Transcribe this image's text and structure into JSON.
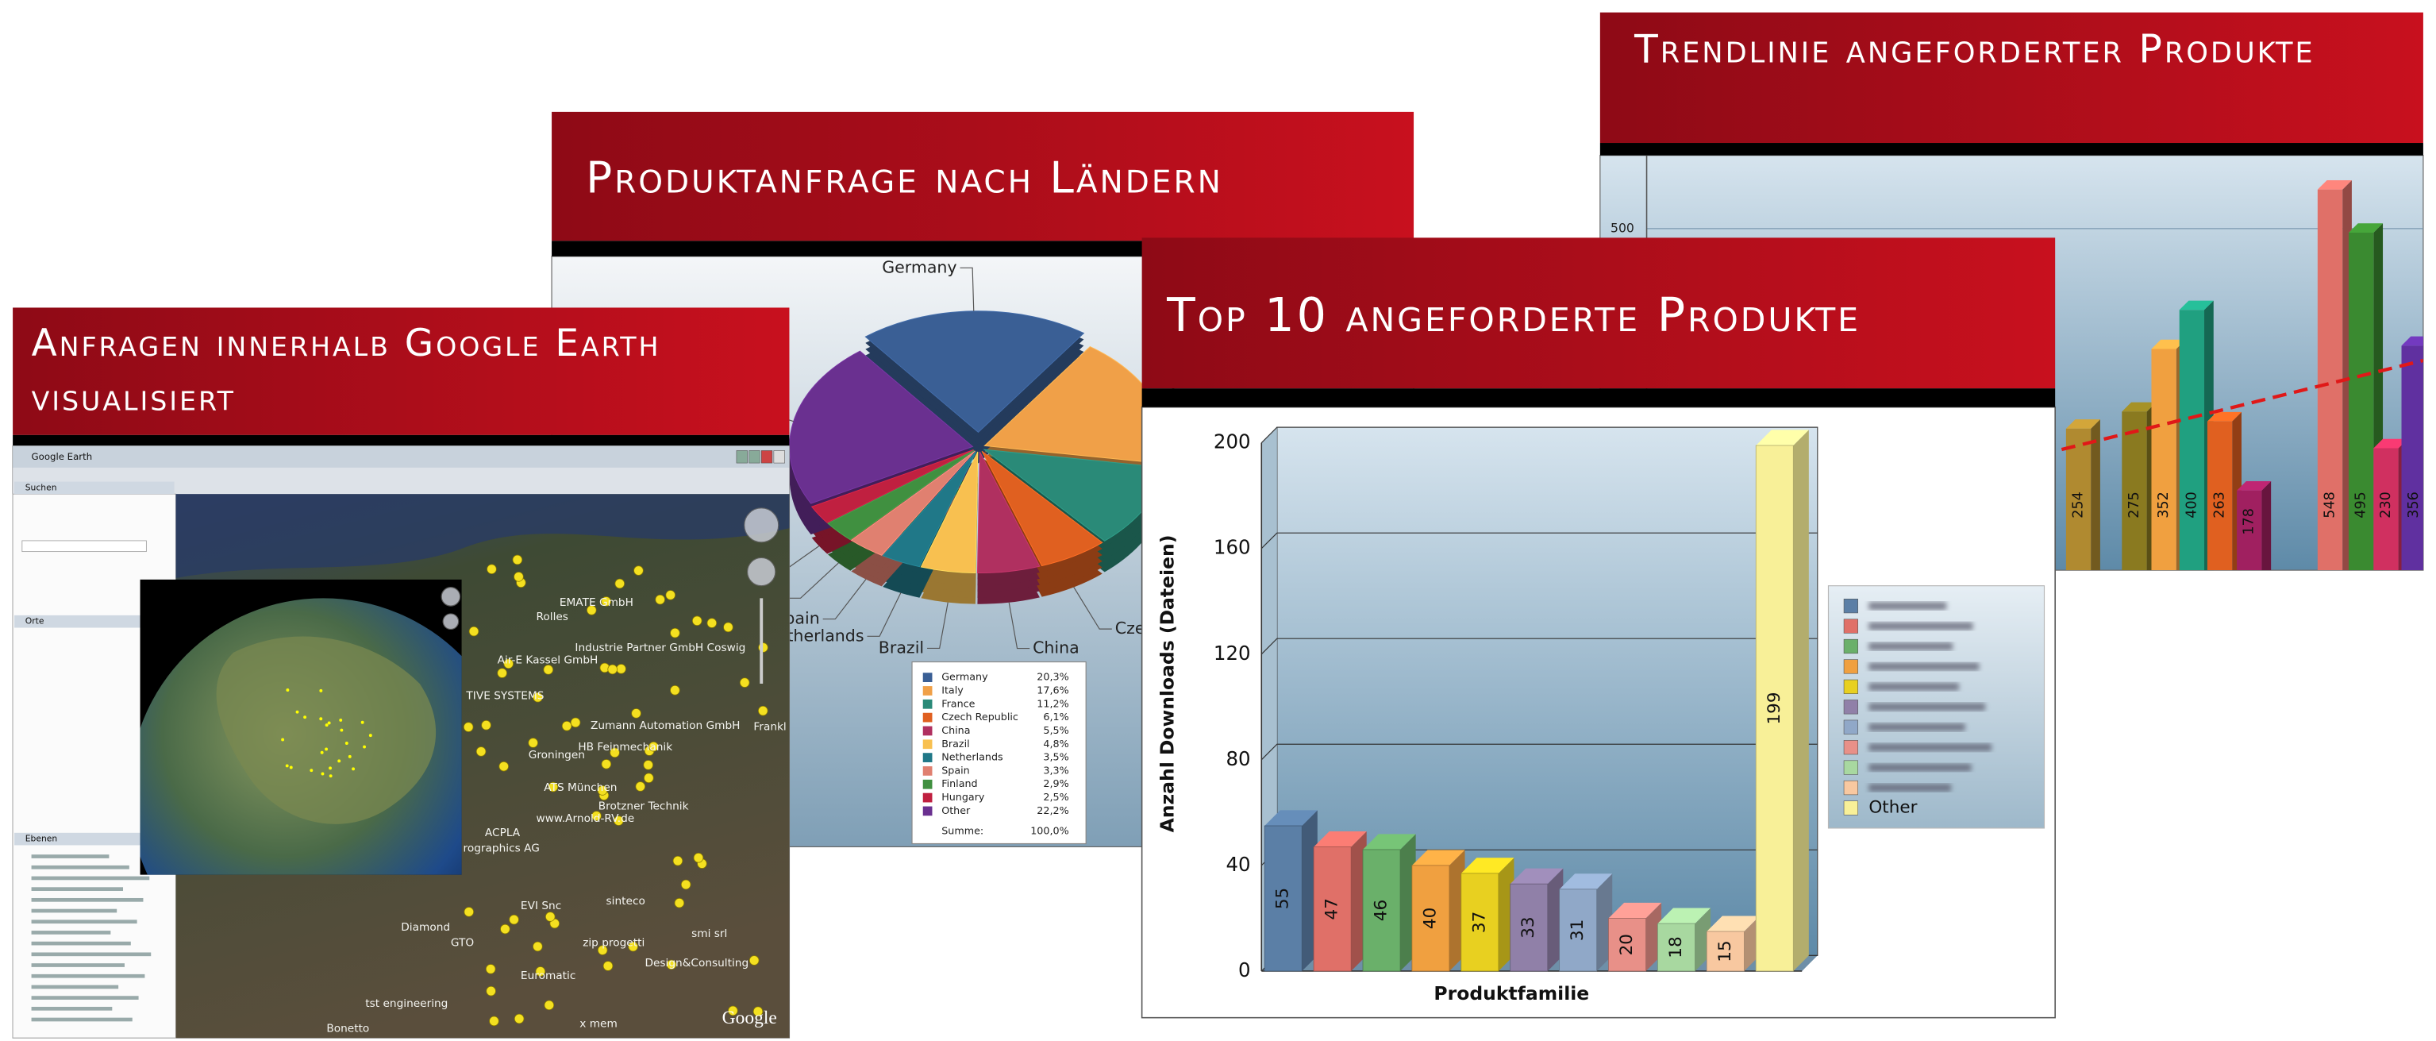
{
  "earth": {
    "title": "Anfragen innerhalb Google Earth visualisiert",
    "app_title": "Google Earth",
    "sidebar": [
      "Suchen",
      "Orte",
      "Ebenen"
    ],
    "map_labels": [
      "EMATE GmbH",
      "Industrie Partner GmbH Coswig",
      "Rolles",
      "Air-E Kassel GmbH",
      "TIVE SYSTEMS",
      "Zumann Automation GmbH",
      "HB Feinmechanik",
      "Groningen",
      "ATS München",
      "Brotzner Technik",
      "www.Arnold-RV.de",
      "ACPLA",
      "rographics AG",
      "EVI Snc",
      "sinteco",
      "Diamond",
      "GTO",
      "zip progetti",
      "smi srl",
      "Euromatic",
      "Design&Consulting",
      "tst engineering",
      "Bonetto",
      "x mem",
      "Frankl"
    ],
    "logo": "Google"
  },
  "chart_data": [
    {
      "type": "pie",
      "title": "Produktanfrage nach Ländern",
      "categories": [
        "Germany",
        "Italy",
        "France",
        "Czech Republic",
        "China",
        "Brazil",
        "Netherlands",
        "Spain",
        "Finland",
        "Hungary",
        "Other"
      ],
      "values": [
        20.3,
        17.6,
        11.2,
        6.1,
        5.5,
        4.8,
        3.5,
        3.3,
        2.9,
        2.5,
        22.2
      ],
      "value_labels": [
        "20,3%",
        "17,6%",
        "11,2%",
        "6,1%",
        "5,5%",
        "4,8%",
        "3,5%",
        "3,3%",
        "2,9%",
        "2,5%",
        "22,2%"
      ],
      "colors": [
        "#3a5f95",
        "#f0a048",
        "#2a8a78",
        "#e06020",
        "#b03060",
        "#f8c050",
        "#207888",
        "#e08070",
        "#409040",
        "#c02040",
        "#6a3090"
      ],
      "total_label": "Summe:",
      "total": 100,
      "total_value_label": "100,0%"
    },
    {
      "type": "bar",
      "title": "Top 10 angeforderte Produkte",
      "xlabel": "Produktfamilie",
      "ylabel": "Anzahl Downloads (Dateien)",
      "categories": [
        null,
        null,
        null,
        null,
        null,
        null,
        null,
        null,
        null,
        null,
        "Other"
      ],
      "values": [
        55,
        47,
        46,
        40,
        37,
        33,
        31,
        20,
        18,
        15,
        199
      ],
      "colors": [
        "#5b7fa6",
        "#e07068",
        "#6ab06a",
        "#f0a040",
        "#e8d020",
        "#9080a8",
        "#90a8c8",
        "#e89088",
        "#a8d8a0",
        "#f8c8a0",
        "#f8f098"
      ],
      "ylim": [
        0,
        200
      ],
      "yticks": [
        0,
        40,
        80,
        120,
        160,
        200
      ],
      "grid": true,
      "legend": "right"
    },
    {
      "type": "bar",
      "title": "Trendlinie angeforderter Produkte",
      "values": [
        254,
        275,
        352,
        400,
        263,
        178,
        548,
        495,
        230,
        356
      ],
      "colors": [
        "#b08a30",
        "#8a7a20",
        "#f0a040",
        "#20a080",
        "#e06020",
        "#a02060",
        "#e07068",
        "#3a8a30",
        "#d03060",
        "#6030a0"
      ],
      "ylim": [
        80,
        590
      ],
      "yticks": [
        500
      ],
      "grid": true,
      "trendline": true
    }
  ]
}
